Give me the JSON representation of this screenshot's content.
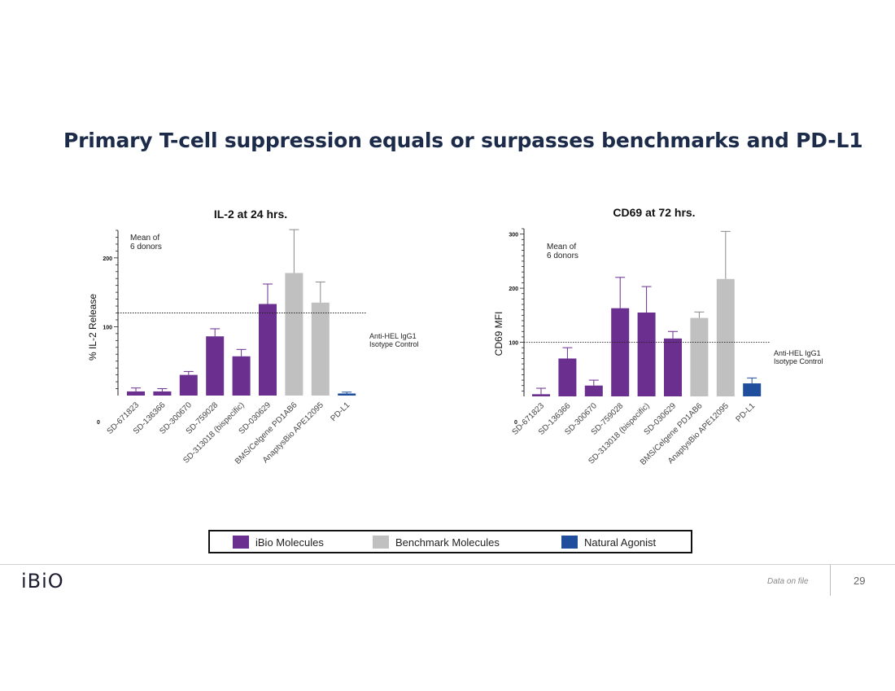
{
  "slide": {
    "title": "Primary T-cell suppression equals or surpasses benchmarks and PD-L1",
    "footer_note": "Data on file",
    "page_number": "29",
    "logo_text": "iBiO"
  },
  "colors": {
    "ibio": "#6b2f8f",
    "benchmark": "#c0c0c0",
    "natural": "#1f4f9c"
  },
  "legend": [
    {
      "label": "iBio Molecules",
      "color": "#6b2f8f"
    },
    {
      "label": "Benchmark Molecules",
      "color": "#c0c0c0"
    },
    {
      "label": "Natural Agonist",
      "color": "#1f4f9c"
    }
  ],
  "chart_data": [
    {
      "type": "bar",
      "title": "IL-2 at 24 hrs.",
      "ylabel": "% IL-2 Release",
      "ylim": [
        0,
        240
      ],
      "yticks": [
        0,
        100,
        200
      ],
      "annotation": [
        "Mean of",
        "6 donors"
      ],
      "reference_line": {
        "value": 120,
        "label": [
          "Anti-HEL IgG1",
          "Isotype Control"
        ]
      },
      "categories": [
        "SD-671823",
        "SD-136366",
        "SD-300670",
        "SD-759028",
        "SD-313018 (bispecific)",
        "SD-030629",
        "BMS/Celgene PD1AB6",
        "AnaptysBio APE12095",
        "PD-L1"
      ],
      "groups": [
        "ibio",
        "ibio",
        "ibio",
        "ibio",
        "ibio",
        "ibio",
        "benchmark",
        "benchmark",
        "natural"
      ],
      "values": [
        6,
        6,
        30,
        86,
        57,
        133,
        178,
        135,
        3
      ],
      "errors": [
        5,
        4,
        5,
        11,
        10,
        29,
        63,
        30,
        2
      ]
    },
    {
      "type": "bar",
      "title": "CD69 at 72 hrs.",
      "ylabel": "CD69 MFI",
      "ylim": [
        0,
        310
      ],
      "yticks": [
        0,
        100,
        200,
        300
      ],
      "annotation": [
        "Mean of",
        "6 donors"
      ],
      "reference_line": {
        "value": 100,
        "label": [
          "Anti-HEL IgG1",
          "Isotype Control"
        ]
      },
      "categories": [
        "SD-671823",
        "SD-136366",
        "SD-300670",
        "SD-759028",
        "SD-313018 (bispecific)",
        "SD-030629",
        "BMS/Celgene PD1AB6",
        "AnaptysBio APE12095",
        "PD-L1"
      ],
      "groups": [
        "ibio",
        "ibio",
        "ibio",
        "ibio",
        "ibio",
        "ibio",
        "benchmark",
        "benchmark",
        "natural"
      ],
      "values": [
        4,
        70,
        20,
        163,
        155,
        107,
        145,
        217,
        24
      ],
      "errors": [
        11,
        20,
        10,
        57,
        48,
        13,
        11,
        88,
        10
      ]
    }
  ]
}
